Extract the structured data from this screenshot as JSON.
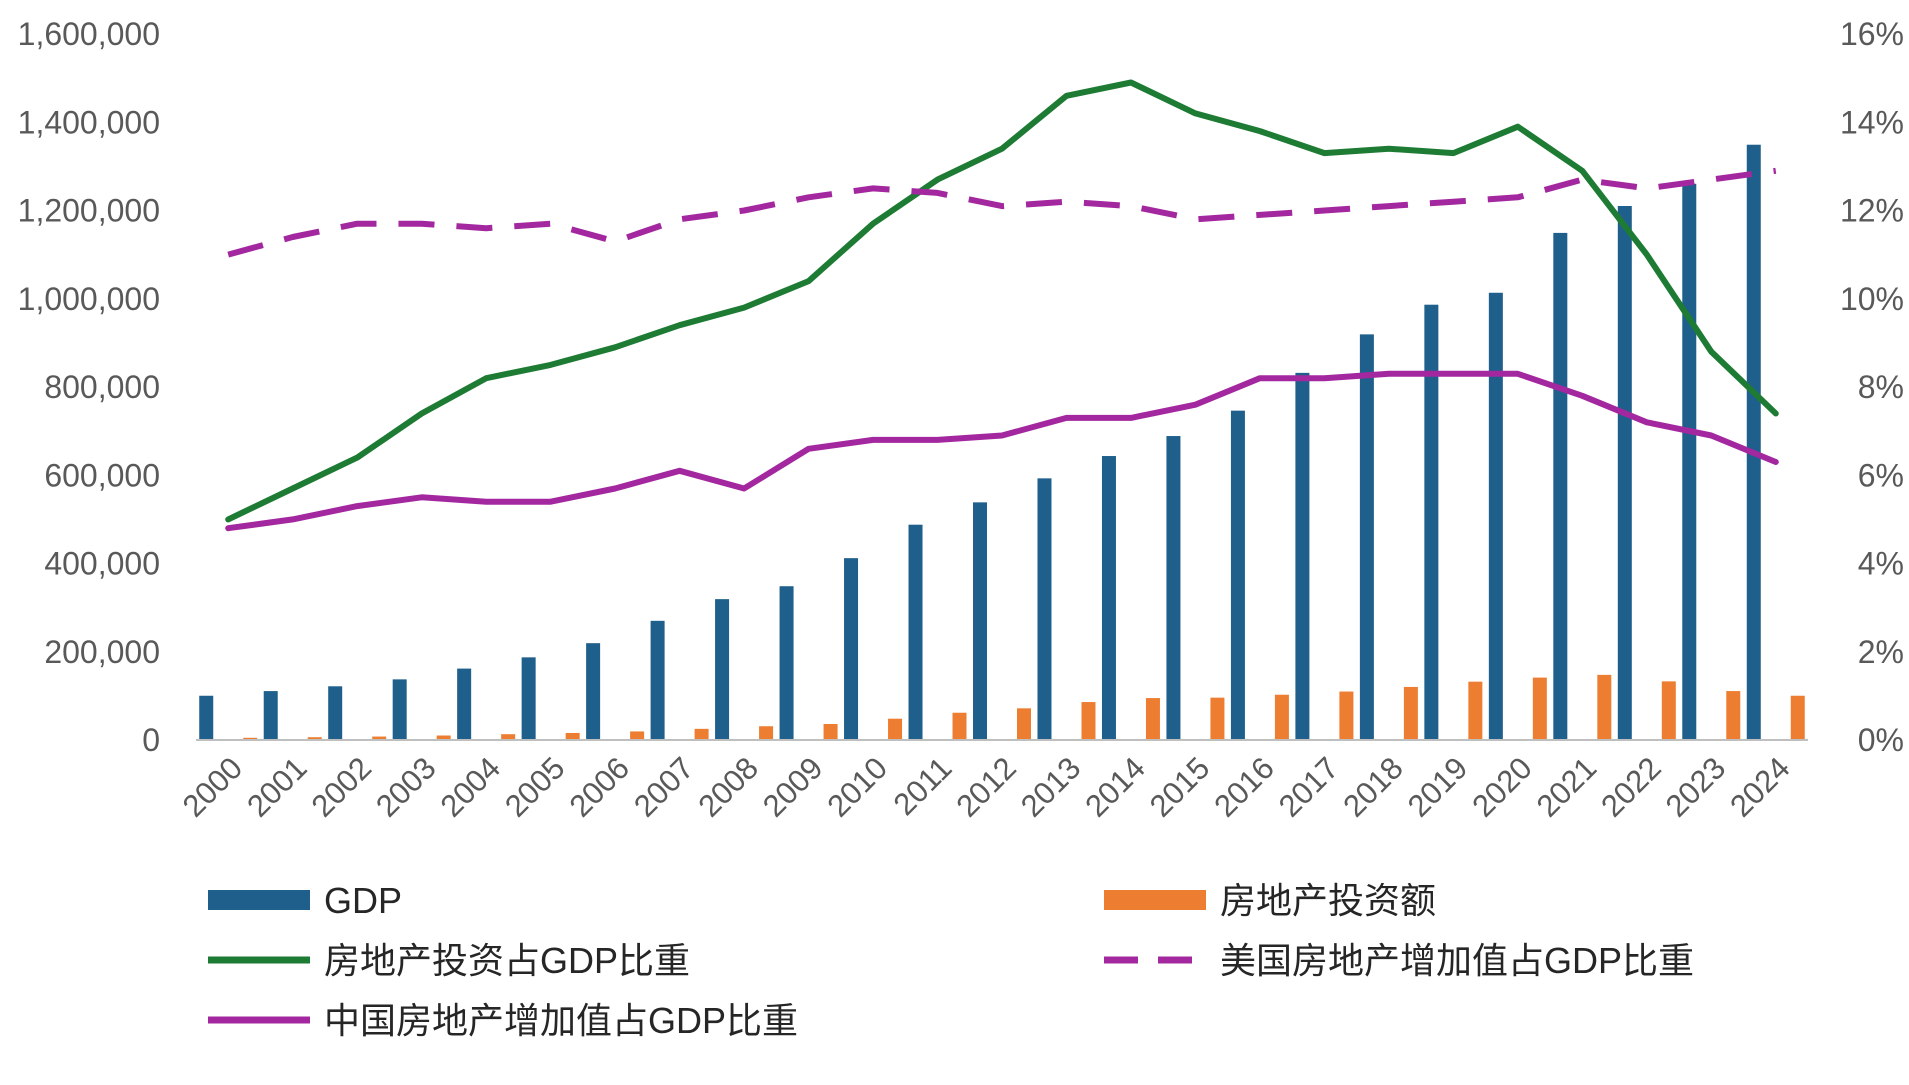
{
  "chart_data": {
    "type": "bar",
    "title": "",
    "xlabel": "",
    "ylabel": "",
    "categories": [
      "2000",
      "2001",
      "2002",
      "2003",
      "2004",
      "2005",
      "2006",
      "2007",
      "2008",
      "2009",
      "2010",
      "2011",
      "2012",
      "2013",
      "2014",
      "2015",
      "2016",
      "2017",
      "2018",
      "2019",
      "2020",
      "2021",
      "2022",
      "2023",
      "2024"
    ],
    "y_left": {
      "ylim": [
        0,
        1600000
      ],
      "ticks": [
        0,
        200000,
        400000,
        600000,
        800000,
        1000000,
        1200000,
        1400000,
        1600000
      ],
      "tick_labels": [
        "0",
        "200,000",
        "400,000",
        "600,000",
        "800,000",
        "1,000,000",
        "1,200,000",
        "1,400,000",
        "1,600,000"
      ]
    },
    "y_right": {
      "ylim": [
        0,
        16
      ],
      "ticks": [
        0,
        2,
        4,
        6,
        8,
        10,
        12,
        14,
        16
      ],
      "tick_labels": [
        "0%",
        "2%",
        "4%",
        "6%",
        "8%",
        "10%",
        "12%",
        "14%",
        "16%"
      ]
    },
    "series": [
      {
        "name": "GDP",
        "type": "bar",
        "axis": "left",
        "color": "#1f5f8b",
        "values": [
          100280,
          110863,
          121717,
          137422,
          161840,
          187319,
          219439,
          270092,
          319245,
          348518,
          412119,
          487940,
          538580,
          592963,
          643563,
          688858,
          746395,
          832036,
          919281,
          986515,
          1013567,
          1149237,
          1210207,
          1260582,
          1349084
        ]
      },
      {
        "name": "房地产投资额",
        "type": "bar",
        "axis": "left",
        "color": "#ed7d31",
        "values": [
          4984,
          6344,
          7791,
          10154,
          13158,
          15909,
          19423,
          25289,
          31203,
          36232,
          48259,
          61797,
          71804,
          86013,
          95036,
          95979,
          102581,
          109799,
          120264,
          132194,
          141443,
          147602,
          132895,
          110913,
          100280
        ]
      },
      {
        "name": "房地产投资占GDP比重",
        "type": "line",
        "axis": "right",
        "color": "#1e7b34",
        "dash": "solid",
        "values": [
          5.0,
          5.7,
          6.4,
          7.4,
          8.2,
          8.5,
          8.9,
          9.4,
          9.8,
          10.4,
          11.7,
          12.7,
          13.4,
          14.6,
          14.9,
          14.2,
          13.8,
          13.3,
          13.4,
          13.3,
          13.9,
          12.9,
          11.0,
          8.8,
          7.4
        ]
      },
      {
        "name": "美国房地产增加值占GDP比重",
        "type": "line",
        "axis": "right",
        "color": "#a3289f",
        "dash": "dashed",
        "values": [
          11.0,
          11.4,
          11.7,
          11.7,
          11.6,
          11.7,
          11.3,
          11.8,
          12.0,
          12.3,
          12.5,
          12.4,
          12.1,
          12.2,
          12.1,
          11.8,
          11.9,
          12.0,
          12.1,
          12.2,
          12.3,
          12.7,
          12.5,
          12.7,
          12.9
        ]
      },
      {
        "name": "中国房地产增加值占GDP比重",
        "type": "line",
        "axis": "right",
        "color": "#a3289f",
        "dash": "solid",
        "values": [
          4.8,
          5.0,
          5.3,
          5.5,
          5.4,
          5.4,
          5.7,
          6.1,
          5.7,
          6.6,
          6.8,
          6.8,
          6.9,
          7.3,
          7.3,
          7.6,
          8.2,
          8.2,
          8.3,
          8.3,
          8.3,
          7.8,
          7.2,
          6.9,
          6.3
        ]
      }
    ],
    "legend_position": "bottom"
  }
}
